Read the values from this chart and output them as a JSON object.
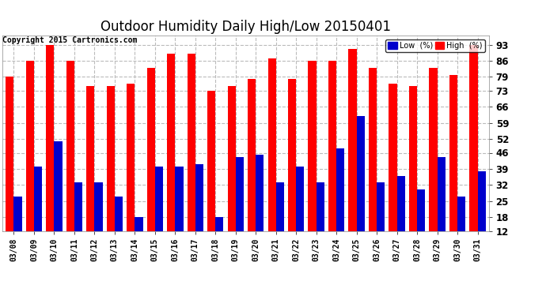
{
  "title": "Outdoor Humidity Daily High/Low 20150401",
  "copyright": "Copyright 2015 Cartronics.com",
  "categories": [
    "03/08",
    "03/09",
    "03/10",
    "03/11",
    "03/12",
    "03/13",
    "03/14",
    "03/15",
    "03/16",
    "03/17",
    "03/18",
    "03/19",
    "03/20",
    "03/21",
    "03/22",
    "03/23",
    "03/24",
    "03/25",
    "03/26",
    "03/27",
    "03/28",
    "03/29",
    "03/30",
    "03/31"
  ],
  "high_values": [
    79,
    86,
    93,
    86,
    75,
    75,
    76,
    83,
    89,
    89,
    73,
    75,
    78,
    87,
    78,
    86,
    86,
    91,
    83,
    76,
    75,
    83,
    80,
    93
  ],
  "low_values": [
    27,
    40,
    51,
    33,
    33,
    27,
    18,
    40,
    40,
    41,
    18,
    44,
    45,
    33,
    40,
    33,
    48,
    62,
    33,
    36,
    30,
    44,
    27,
    38
  ],
  "high_color": "#ff0000",
  "low_color": "#0000cc",
  "bg_color": "#ffffff",
  "plot_bg_color": "#ffffff",
  "grid_color": "#bbbbbb",
  "title_fontsize": 12,
  "yticks": [
    12,
    18,
    25,
    32,
    39,
    46,
    52,
    59,
    66,
    73,
    79,
    86,
    93
  ],
  "ylim": [
    12,
    97
  ],
  "legend_low_label": "Low  (%)",
  "legend_high_label": "High  (%)"
}
